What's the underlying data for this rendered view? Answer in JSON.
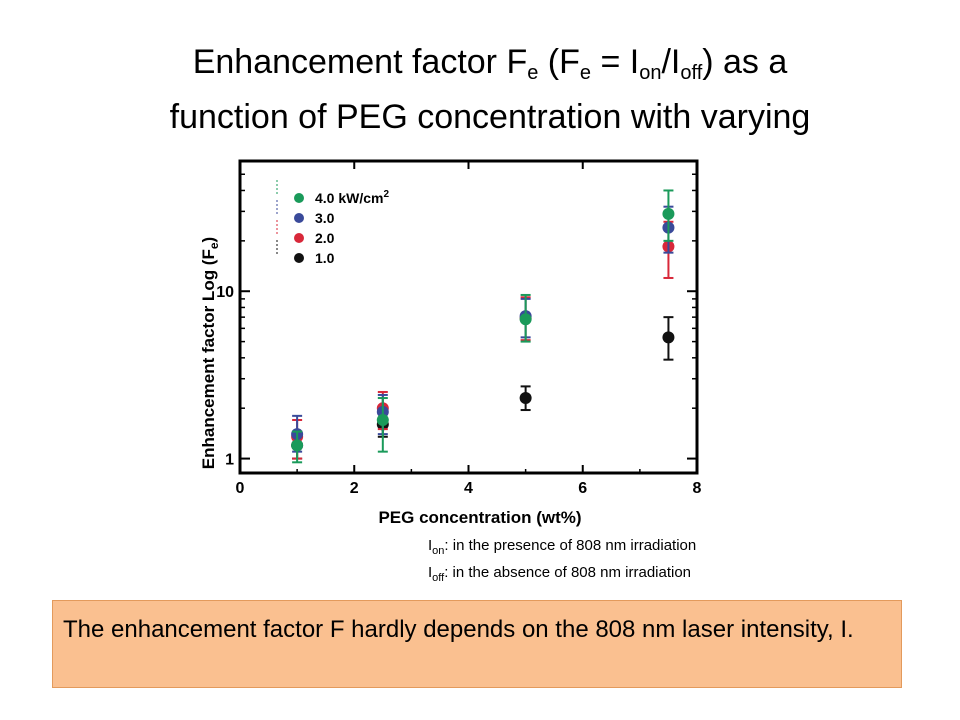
{
  "slide": {
    "title": {
      "line1_a": "Enhancement factor F",
      "line1_sub1": "e",
      "line1_b": " (F",
      "line1_sub2": "e",
      "line1_c": " = I",
      "line1_sub3": "on",
      "line1_d": "/I",
      "line1_sub4": "off",
      "line1_e": ") as a",
      "line2": "function of PEG concentration with varying"
    },
    "irradiation_notes": {
      "on_main": "I",
      "on_sub": "on",
      "on_text": ": in the presence of 808 nm irradiation",
      "off_main": "I",
      "off_sub": "off",
      "off_text": ": in the absence of 808 nm irradiation"
    },
    "conclusion": "The enhancement factor F hardly depends on the 808 nm laser intensity, I.",
    "colors": {
      "note_bg": "#fac090",
      "series_4": "#1a9a5a",
      "series_3": "#3a4a9a",
      "series_2": "#d8283a",
      "series_1": "#111111"
    }
  },
  "chart_data": {
    "type": "scatter",
    "xlabel": "PEG concentration (wt%)",
    "ylabel": "Enhancement factor Log (F",
    "ylabel_sub": "e",
    "ylabel_end": ")",
    "yscale": "log",
    "xlim": [
      0,
      8
    ],
    "ylim": [
      0.82,
      60
    ],
    "x_ticks": [
      0,
      2,
      4,
      6,
      8
    ],
    "x_tick_labels": [
      "0",
      "2",
      "4",
      "6",
      "8"
    ],
    "y_ticks": [
      1,
      10
    ],
    "y_tick_labels": [
      "1",
      "10"
    ],
    "legend_position": "top-left",
    "series": [
      {
        "name": "4.0 kW/cm",
        "name_sup": "2",
        "color": "#1a9a5a",
        "x": [
          1,
          2.5,
          5,
          7.5
        ],
        "y": [
          1.2,
          1.7,
          6.8,
          29
        ],
        "err_low": [
          0.95,
          1.1,
          5.0,
          20
        ],
        "err_high": [
          1.45,
          2.3,
          9.5,
          40
        ]
      },
      {
        "name": "3.0",
        "color": "#3a4a9a",
        "x": [
          1,
          2.5,
          5,
          7.5
        ],
        "y": [
          1.4,
          1.9,
          7.1,
          24
        ],
        "err_low": [
          1.1,
          1.4,
          5.3,
          17
        ],
        "err_high": [
          1.8,
          2.4,
          9.0,
          32
        ]
      },
      {
        "name": "2.0",
        "color": "#d8283a",
        "x": [
          1,
          2.5,
          5,
          7.5
        ],
        "y": [
          1.35,
          2.0,
          6.9,
          18.5
        ],
        "err_low": [
          1.0,
          1.5,
          5.1,
          12
        ],
        "err_high": [
          1.7,
          2.5,
          9.2,
          26
        ]
      },
      {
        "name": "1.0",
        "color": "#111111",
        "x": [
          1,
          2.5,
          5,
          7.5
        ],
        "y": [
          1.2,
          1.6,
          2.3,
          5.3
        ],
        "err_low": [
          1.0,
          1.35,
          1.95,
          3.9
        ],
        "err_high": [
          1.45,
          1.95,
          2.7,
          7.0
        ]
      }
    ]
  }
}
